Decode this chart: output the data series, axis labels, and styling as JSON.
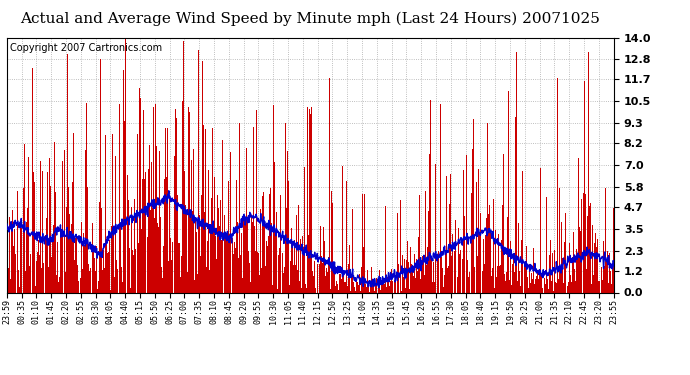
{
  "title": "Actual and Average Wind Speed by Minute mph (Last 24 Hours) 20071025",
  "copyright": "Copyright 2007 Cartronics.com",
  "yticks": [
    0.0,
    1.2,
    2.3,
    3.5,
    4.7,
    5.8,
    7.0,
    8.2,
    9.3,
    10.5,
    11.7,
    12.8,
    14.0
  ],
  "ylim": [
    0.0,
    14.0
  ],
  "bar_color": "#cc0000",
  "line_color": "#0000cc",
  "background_color": "#ffffff",
  "grid_color": "#aaaaaa",
  "title_fontsize": 11,
  "copyright_fontsize": 7,
  "xtick_fontsize": 6,
  "ytick_fontsize": 8,
  "n_minutes": 1440,
  "seed": 99,
  "avg_profile": [
    3.5,
    3.8,
    3.6,
    3.2,
    3.0,
    2.8,
    3.5,
    3.2,
    3.0,
    2.8,
    2.5,
    2.0,
    3.2,
    3.5,
    4.0,
    4.2,
    4.5,
    4.8,
    5.0,
    5.2,
    4.8,
    4.5,
    4.0,
    3.8,
    3.5,
    3.2,
    3.0,
    3.5,
    4.0,
    4.2,
    3.8,
    3.5,
    3.2,
    2.8,
    2.5,
    2.2,
    2.0,
    1.8,
    1.5,
    1.2,
    1.0,
    0.8,
    0.6,
    0.5,
    0.6,
    0.8,
    1.0,
    1.2,
    1.5,
    1.8,
    2.0,
    2.2,
    2.5,
    2.8,
    3.0,
    3.2,
    3.5,
    3.0,
    2.5,
    2.0,
    1.8,
    1.5,
    1.2,
    1.0,
    1.2,
    1.5,
    1.8,
    2.0,
    2.2,
    2.0,
    1.8,
    1.5
  ],
  "xtick_labels": [
    "23:59",
    "00:35",
    "01:10",
    "01:45",
    "02:20",
    "02:55",
    "03:30",
    "04:05",
    "04:40",
    "05:15",
    "05:50",
    "06:25",
    "07:00",
    "07:35",
    "08:10",
    "08:45",
    "09:20",
    "09:55",
    "10:30",
    "11:05",
    "11:40",
    "12:15",
    "12:50",
    "13:25",
    "14:00",
    "14:35",
    "15:10",
    "15:45",
    "16:20",
    "16:55",
    "17:30",
    "18:05",
    "18:40",
    "19:15",
    "19:50",
    "20:25",
    "21:00",
    "21:35",
    "22:10",
    "22:45",
    "23:20",
    "23:55"
  ]
}
